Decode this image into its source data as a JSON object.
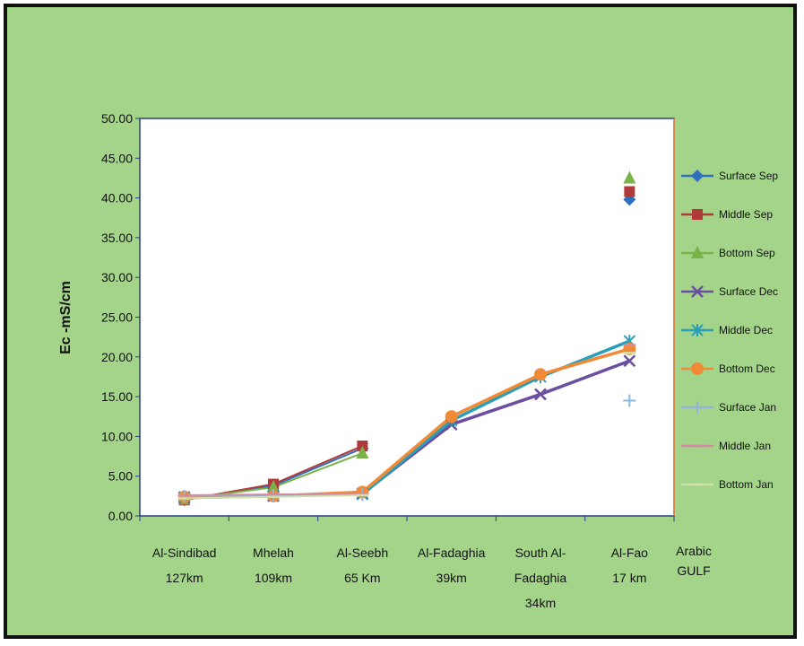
{
  "chart_data": {
    "type": "line",
    "title": "",
    "ylabel": "Ec -mS/cm",
    "xlabel": "",
    "ylim": [
      0,
      50
    ],
    "yticks": [
      "0.00",
      "5.00",
      "10.00",
      "15.00",
      "20.00",
      "25.00",
      "30.00",
      "35.00",
      "40.00",
      "45.00",
      "50.00"
    ],
    "categories": [
      [
        "Al-Sindibad",
        "127km"
      ],
      [
        "Mhelah",
        "109km"
      ],
      [
        "Al-Seebh",
        "65 Km"
      ],
      [
        "Al-Fadaghia",
        "39km"
      ],
      [
        "South Al-",
        "Fadaghia",
        "34km"
      ],
      [
        "Al-Fao",
        "17 km"
      ]
    ],
    "end_label": [
      "Arabic",
      "GULF"
    ],
    "grid": false,
    "legend_position": "right",
    "series": [
      {
        "name": "Surface Sep",
        "color": "#2f6fbf",
        "marker": "diamond",
        "values": [
          2.0,
          3.8,
          8.5,
          null,
          null,
          39.8
        ]
      },
      {
        "name": "Middle Sep",
        "color": "#b03a3a",
        "marker": "square",
        "values": [
          2.0,
          4.0,
          8.8,
          null,
          null,
          40.8
        ]
      },
      {
        "name": "Bottom Sep",
        "color": "#7ab24a",
        "marker": "triangle",
        "values": [
          2.1,
          3.6,
          7.9,
          null,
          null,
          42.5
        ]
      },
      {
        "name": "Surface Dec",
        "color": "#6a4ea0",
        "marker": "x",
        "values": [
          2.3,
          2.5,
          2.8,
          11.5,
          15.3,
          19.5
        ]
      },
      {
        "name": "Middle Dec",
        "color": "#2aa0b8",
        "marker": "star",
        "values": [
          2.4,
          2.6,
          2.7,
          12.0,
          17.5,
          22.0
        ]
      },
      {
        "name": "Bottom Dec",
        "color": "#f08a36",
        "marker": "circle",
        "values": [
          2.4,
          2.5,
          3.0,
          12.5,
          17.8,
          21.0
        ]
      },
      {
        "name": "Surface Jan",
        "color": "#8fb6d8",
        "marker": "plus",
        "values": [
          2.5,
          2.6,
          2.7,
          null,
          null,
          14.5
        ]
      },
      {
        "name": "Middle Jan",
        "color": "#d48aa0",
        "marker": "dash",
        "values": [
          2.6,
          2.7,
          2.8,
          null,
          null,
          21.5
        ]
      },
      {
        "name": "Bottom Jan",
        "color": "#cfe0a8",
        "marker": "dash",
        "values": [
          2.2,
          2.4,
          2.6,
          null,
          null,
          20.5
        ]
      }
    ]
  }
}
